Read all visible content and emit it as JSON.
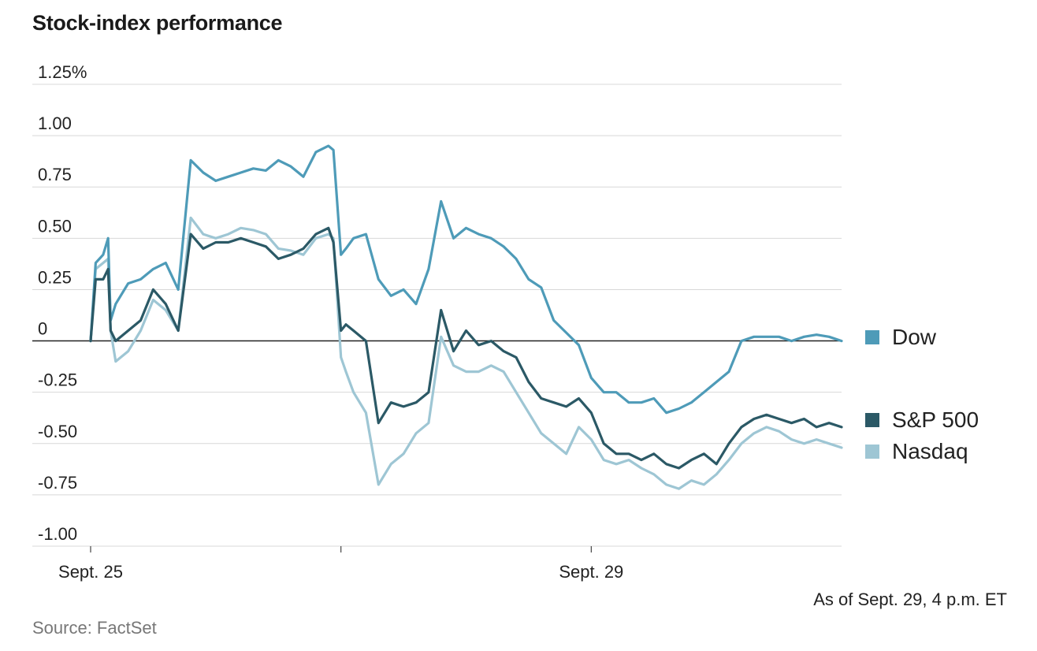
{
  "chart_data": {
    "type": "line",
    "title": "Stock-index performance",
    "ylabel": "",
    "xlabel": "",
    "ylim": [
      -1.0,
      1.25
    ],
    "y_ticks": [
      "1.25%",
      "1.00",
      "0.75",
      "0.50",
      "0.25",
      "0",
      "-0.25",
      "-0.50",
      "-0.75",
      "-1.00"
    ],
    "y_tick_values": [
      1.25,
      1.0,
      0.75,
      0.5,
      0.25,
      0,
      -0.25,
      -0.5,
      -0.75,
      -1.0
    ],
    "x_tick_labels": [
      {
        "label": "Sept. 25",
        "day": 0
      },
      {
        "label": "",
        "day": 1
      },
      {
        "label": "Sept. 29",
        "day": 2
      }
    ],
    "x_range_days": [
      0,
      3
    ],
    "grid": "horizontal",
    "legend_position": "right",
    "series": [
      {
        "name": "Dow",
        "color": "#4e9bb8",
        "x": [
          0.0,
          0.02,
          0.05,
          0.07,
          0.08,
          0.1,
          0.15,
          0.2,
          0.25,
          0.3,
          0.35,
          0.4,
          0.45,
          0.5,
          0.55,
          0.6,
          0.65,
          0.7,
          0.75,
          0.8,
          0.85,
          0.9,
          0.95,
          0.97,
          1.0,
          1.02,
          1.05,
          1.1,
          1.15,
          1.2,
          1.25,
          1.3,
          1.35,
          1.4,
          1.45,
          1.5,
          1.55,
          1.6,
          1.65,
          1.7,
          1.75,
          1.8,
          1.85,
          1.9,
          1.95,
          2.0,
          2.05,
          2.1,
          2.15,
          2.2,
          2.25,
          2.3,
          2.35,
          2.4,
          2.45,
          2.5,
          2.55,
          2.6,
          2.65,
          2.7,
          2.75,
          2.8,
          2.85,
          2.9,
          2.95,
          3.0
        ],
        "values": [
          0.0,
          0.38,
          0.42,
          0.5,
          0.1,
          0.18,
          0.28,
          0.3,
          0.35,
          0.38,
          0.25,
          0.88,
          0.82,
          0.78,
          0.8,
          0.82,
          0.84,
          0.83,
          0.88,
          0.85,
          0.8,
          0.92,
          0.95,
          0.93,
          0.42,
          0.45,
          0.5,
          0.52,
          0.3,
          0.22,
          0.25,
          0.18,
          0.35,
          0.68,
          0.5,
          0.55,
          0.52,
          0.5,
          0.46,
          0.4,
          0.3,
          0.26,
          0.1,
          0.04,
          -0.02,
          -0.18,
          -0.25,
          -0.25,
          -0.3,
          -0.3,
          -0.28,
          -0.35,
          -0.33,
          -0.3,
          -0.25,
          -0.2,
          -0.15,
          0.0,
          0.02,
          0.02,
          0.02,
          0.0,
          0.02,
          0.03,
          0.02,
          0.0
        ]
      },
      {
        "name": "S&P 500",
        "color": "#2b5966",
        "x": [
          0.0,
          0.02,
          0.05,
          0.07,
          0.08,
          0.1,
          0.15,
          0.2,
          0.25,
          0.3,
          0.35,
          0.4,
          0.45,
          0.5,
          0.55,
          0.6,
          0.65,
          0.7,
          0.75,
          0.8,
          0.85,
          0.9,
          0.95,
          0.97,
          1.0,
          1.02,
          1.05,
          1.1,
          1.15,
          1.2,
          1.25,
          1.3,
          1.35,
          1.4,
          1.45,
          1.5,
          1.55,
          1.6,
          1.65,
          1.7,
          1.75,
          1.8,
          1.85,
          1.9,
          1.95,
          2.0,
          2.05,
          2.1,
          2.15,
          2.2,
          2.25,
          2.3,
          2.35,
          2.4,
          2.45,
          2.5,
          2.55,
          2.6,
          2.65,
          2.7,
          2.75,
          2.8,
          2.85,
          2.9,
          2.95,
          3.0
        ],
        "values": [
          0.0,
          0.3,
          0.3,
          0.35,
          0.05,
          0.0,
          0.05,
          0.1,
          0.25,
          0.18,
          0.05,
          0.52,
          0.45,
          0.48,
          0.48,
          0.5,
          0.48,
          0.46,
          0.4,
          0.42,
          0.45,
          0.52,
          0.55,
          0.48,
          0.05,
          0.08,
          0.05,
          0.0,
          -0.4,
          -0.3,
          -0.32,
          -0.3,
          -0.25,
          0.15,
          -0.05,
          0.05,
          -0.02,
          0.0,
          -0.05,
          -0.08,
          -0.2,
          -0.28,
          -0.3,
          -0.32,
          -0.28,
          -0.35,
          -0.5,
          -0.55,
          -0.55,
          -0.58,
          -0.55,
          -0.6,
          -0.62,
          -0.58,
          -0.55,
          -0.6,
          -0.5,
          -0.42,
          -0.38,
          -0.36,
          -0.38,
          -0.4,
          -0.38,
          -0.42,
          -0.4,
          -0.42
        ]
      },
      {
        "name": "Nasdaq",
        "color": "#9ec6d4",
        "x": [
          0.0,
          0.02,
          0.05,
          0.07,
          0.08,
          0.1,
          0.15,
          0.2,
          0.25,
          0.3,
          0.35,
          0.4,
          0.45,
          0.5,
          0.55,
          0.6,
          0.65,
          0.7,
          0.75,
          0.8,
          0.85,
          0.9,
          0.95,
          0.97,
          1.0,
          1.02,
          1.05,
          1.1,
          1.15,
          1.2,
          1.25,
          1.3,
          1.35,
          1.4,
          1.45,
          1.5,
          1.55,
          1.6,
          1.65,
          1.7,
          1.75,
          1.8,
          1.85,
          1.9,
          1.95,
          2.0,
          2.05,
          2.1,
          2.15,
          2.2,
          2.25,
          2.3,
          2.35,
          2.4,
          2.45,
          2.5,
          2.55,
          2.6,
          2.65,
          2.7,
          2.75,
          2.8,
          2.85,
          2.9,
          2.95,
          3.0
        ],
        "values": [
          0.0,
          0.35,
          0.38,
          0.4,
          0.05,
          -0.1,
          -0.05,
          0.05,
          0.2,
          0.15,
          0.05,
          0.6,
          0.52,
          0.5,
          0.52,
          0.55,
          0.54,
          0.52,
          0.45,
          0.44,
          0.42,
          0.5,
          0.52,
          0.5,
          -0.08,
          -0.15,
          -0.25,
          -0.35,
          -0.7,
          -0.6,
          -0.55,
          -0.45,
          -0.4,
          0.02,
          -0.12,
          -0.15,
          -0.15,
          -0.12,
          -0.15,
          -0.25,
          -0.35,
          -0.45,
          -0.5,
          -0.55,
          -0.42,
          -0.48,
          -0.58,
          -0.6,
          -0.58,
          -0.62,
          -0.65,
          -0.7,
          -0.72,
          -0.68,
          -0.7,
          -0.65,
          -0.58,
          -0.5,
          -0.45,
          -0.42,
          -0.44,
          -0.48,
          -0.5,
          -0.48,
          -0.5,
          -0.52
        ]
      }
    ],
    "note": "As of Sept. 29, 4 p.m. ET",
    "source": "Source: FactSet"
  }
}
